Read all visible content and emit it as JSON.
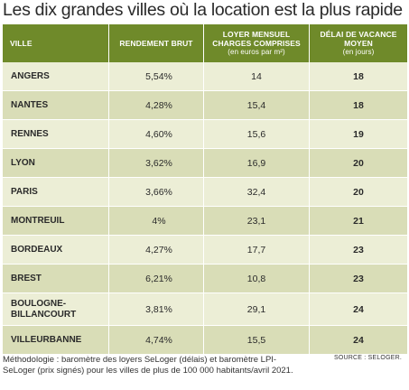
{
  "title": "Les dix grandes villes où la location est la plus rapide",
  "headers": {
    "ville": "VILLE",
    "rendement": "RENDEMENT BRUT",
    "loyer_line1": "LOYER MENSUEL",
    "loyer_line2": "CHARGES COMPRISES",
    "loyer_sub": "(en euros par m²)",
    "delai_line1": "DÉLAI DE VACANCE",
    "delai_line2": "MOYEN",
    "delai_sub": "(en jours)"
  },
  "rows": [
    {
      "ville": "ANGERS",
      "rendement": "5,54%",
      "loyer": "14",
      "delai": "18"
    },
    {
      "ville": "NANTES",
      "rendement": "4,28%",
      "loyer": "15,4",
      "delai": "18"
    },
    {
      "ville": "RENNES",
      "rendement": "4,60%",
      "loyer": "15,6",
      "delai": "19"
    },
    {
      "ville": "LYON",
      "rendement": "3,62%",
      "loyer": "16,9",
      "delai": "20"
    },
    {
      "ville": "PARIS",
      "rendement": "3,66%",
      "loyer": "32,4",
      "delai": "20"
    },
    {
      "ville": "MONTREUIL",
      "rendement": "4%",
      "loyer": "23,1",
      "delai": "21"
    },
    {
      "ville": "BORDEAUX",
      "rendement": "4,27%",
      "loyer": "17,7",
      "delai": "23"
    },
    {
      "ville": "BREST",
      "rendement": "6,21%",
      "loyer": "10,8",
      "delai": "23"
    },
    {
      "ville": "BOULOGNE-\nBILLANCOURT",
      "rendement": "3,81%",
      "loyer": "29,1",
      "delai": "24"
    },
    {
      "ville": "VILLEURBANNE",
      "rendement": "4,74%",
      "loyer": "15,5",
      "delai": "24"
    }
  ],
  "methodology": "Méthodologie : baromètre des loyers SeLoger (délais) et baromètre LPI-SeLoger (prix signés) pour les villes de plus de 100 000 habitants/avril 2021.",
  "source": "SOURCE : SELOGER.",
  "colors": {
    "header_bg": "#6f8a2a",
    "row_light": "#eceed6",
    "row_dark": "#d9ddb7"
  }
}
